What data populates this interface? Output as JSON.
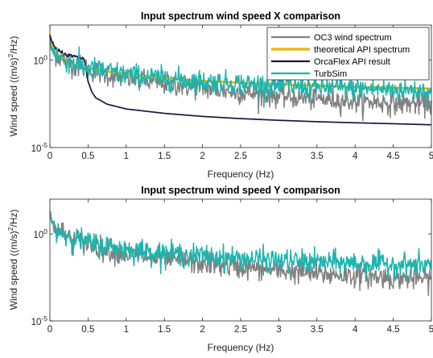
{
  "colors": {
    "oc3": "#808080",
    "api_theory": "#F0B400",
    "orcaflex": "#1F1340",
    "turbsim": "#1BB5AE",
    "axis": "#262626"
  },
  "chart_data": [
    {
      "type": "line",
      "title": "Input spectrum wind speed X comparison",
      "xlabel": "Frequency (Hz)",
      "ylabel_main": "Wind speed ((m/s)",
      "ylabel_sup": "2",
      "ylabel_end": "/Hz)",
      "xlim": [
        0,
        5
      ],
      "ylim": [
        1e-05,
        100
      ],
      "yscale": "log",
      "x_ticks": [
        0,
        0.5,
        1,
        1.5,
        2,
        2.5,
        3,
        3.5,
        4,
        4.5,
        5
      ],
      "x_tick_labels": [
        "0",
        "0.5",
        "1",
        "1.5",
        "2",
        "2.5",
        "3",
        "3.5",
        "4",
        "4.5",
        "5"
      ],
      "y_ticks": [
        1,
        1e-05
      ],
      "y_tick_labels": [
        {
          "base": "10",
          "exp": "0"
        },
        {
          "base": "10",
          "exp": "-5"
        }
      ],
      "legend_position": "top-right",
      "legend": [
        "OC3 wind spectrum",
        "theoretical API spectrum",
        "OrcaFlex API result",
        "TurbSim"
      ],
      "series": [
        {
          "name": "OC3 wind spectrum",
          "color_key": "oc3",
          "kind": "noisy",
          "x": [
            0,
            0.02,
            0.05,
            0.1,
            0.2,
            0.3,
            0.5,
            0.75,
            1,
            1.5,
            2,
            2.5,
            3,
            3.5,
            4,
            4.5,
            5
          ],
          "y": [
            10,
            4,
            2.5,
            1.6,
            0.9,
            0.55,
            0.3,
            0.15,
            0.09,
            0.045,
            0.025,
            0.014,
            0.009,
            0.006,
            0.0045,
            0.0035,
            0.003
          ]
        },
        {
          "name": "theoretical API spectrum",
          "color_key": "api_theory",
          "kind": "smooth",
          "x": [
            0,
            0.01,
            0.02,
            0.05,
            0.1,
            0.2,
            0.3,
            0.5,
            0.75,
            1,
            1.5,
            2,
            2.5,
            3,
            3.5,
            4,
            4.5,
            5
          ],
          "y": [
            30,
            18,
            10,
            4.5,
            2.2,
            1,
            0.6,
            0.35,
            0.22,
            0.15,
            0.09,
            0.065,
            0.05,
            0.04,
            0.034,
            0.029,
            0.026,
            0.023
          ]
        },
        {
          "name": "OrcaFlex API result",
          "color_key": "orcaflex",
          "kind": "orcaflex",
          "x": [
            0,
            0.02,
            0.05,
            0.1,
            0.2,
            0.3,
            0.4,
            0.45,
            0.47,
            0.5,
            0.55,
            0.6,
            0.75,
            1,
            1.5,
            2,
            2.5,
            3,
            3.5,
            4,
            4.5,
            5
          ],
          "y": [
            22,
            12,
            6,
            3.5,
            2.2,
            1.6,
            1.3,
            1.1,
            0.4,
            0.06,
            0.015,
            0.007,
            0.003,
            0.0016,
            0.0009,
            0.0006,
            0.00045,
            0.00036,
            0.0003,
            0.00026,
            0.00023,
            0.0002
          ]
        },
        {
          "name": "TurbSim",
          "color_key": "turbsim",
          "kind": "noisy",
          "x": [
            0,
            0.02,
            0.05,
            0.1,
            0.2,
            0.3,
            0.5,
            0.75,
            1,
            1.5,
            2,
            2.5,
            3,
            3.5,
            4,
            4.5,
            5
          ],
          "y": [
            12,
            5,
            3,
            1.8,
            1,
            0.65,
            0.35,
            0.22,
            0.15,
            0.09,
            0.06,
            0.045,
            0.035,
            0.028,
            0.024,
            0.02,
            0.018
          ]
        }
      ]
    },
    {
      "type": "line",
      "title": "Input spectrum wind speed Y comparison",
      "xlabel": "Frequency (Hz)",
      "ylabel_main": "Wind speed ((m/s)",
      "ylabel_sup": "2",
      "ylabel_end": "/Hz)",
      "xlim": [
        0,
        5
      ],
      "ylim": [
        1e-05,
        100
      ],
      "yscale": "log",
      "x_ticks": [
        0,
        0.5,
        1,
        1.5,
        2,
        2.5,
        3,
        3.5,
        4,
        4.5,
        5
      ],
      "x_tick_labels": [
        "0",
        "0.5",
        "1",
        "1.5",
        "2",
        "2.5",
        "3",
        "3.5",
        "4",
        "4.5",
        "5"
      ],
      "y_ticks": [
        1,
        1e-05
      ],
      "y_tick_labels": [
        {
          "base": "10",
          "exp": "0"
        },
        {
          "base": "10",
          "exp": "-5"
        }
      ],
      "legend": [],
      "series": [
        {
          "name": "OC3 wind spectrum",
          "color_key": "oc3",
          "kind": "noisy",
          "x": [
            0,
            0.02,
            0.05,
            0.1,
            0.2,
            0.3,
            0.5,
            0.75,
            1,
            1.5,
            2,
            2.5,
            3,
            3.5,
            4,
            4.5,
            5
          ],
          "y": [
            20,
            6,
            3,
            1.7,
            0.9,
            0.5,
            0.25,
            0.12,
            0.07,
            0.035,
            0.02,
            0.012,
            0.008,
            0.005,
            0.004,
            0.003,
            0.0026
          ]
        },
        {
          "name": "TurbSim",
          "color_key": "turbsim",
          "kind": "noisy",
          "x": [
            0,
            0.02,
            0.05,
            0.1,
            0.2,
            0.3,
            0.5,
            0.75,
            1,
            1.5,
            2,
            2.5,
            3,
            3.5,
            4,
            4.5,
            5
          ],
          "y": [
            15,
            5,
            2.8,
            1.6,
            0.95,
            0.6,
            0.33,
            0.2,
            0.13,
            0.08,
            0.055,
            0.04,
            0.03,
            0.025,
            0.021,
            0.018,
            0.016
          ]
        }
      ]
    }
  ]
}
